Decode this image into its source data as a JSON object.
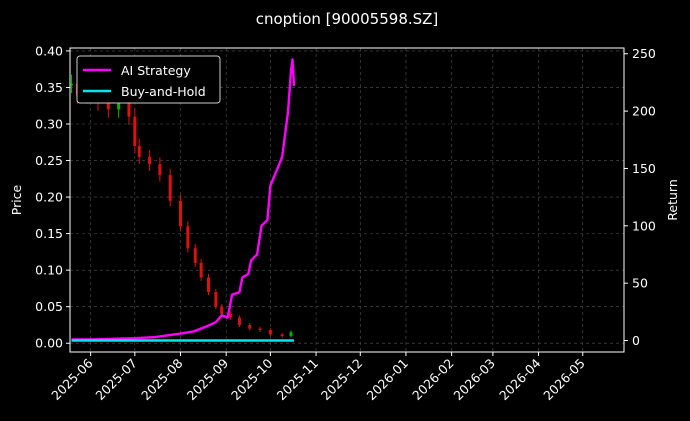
{
  "chart_data": {
    "type": "line",
    "title": "cnoption [90005598.SZ]",
    "ylabel_left": "Price",
    "ylabel_right": "Return",
    "ylim_left": [
      -0.012,
      0.404
    ],
    "ylim_right": [
      -10,
      255
    ],
    "yticks_left": [
      "0.00",
      "0.05",
      "0.10",
      "0.15",
      "0.20",
      "0.25",
      "0.30",
      "0.35",
      "0.40"
    ],
    "yticks_left_values": [
      0.0,
      0.05,
      0.1,
      0.15,
      0.2,
      0.25,
      0.3,
      0.35,
      0.4
    ],
    "yticks_right": [
      "0",
      "50",
      "100",
      "150",
      "200",
      "250"
    ],
    "yticks_right_values": [
      0,
      50,
      100,
      150,
      200,
      250
    ],
    "xlim": [
      "2025-05-18",
      "2026-05-29"
    ],
    "xticks": [
      "2025-06",
      "2025-07",
      "2025-08",
      "2025-09",
      "2025-10",
      "2025-11",
      "2025-12",
      "2026-01",
      "2026-02",
      "2026-03",
      "2026-04",
      "2026-05"
    ],
    "xtick_dates": [
      "2025-06-01",
      "2025-07-01",
      "2025-08-01",
      "2025-09-01",
      "2025-10-01",
      "2025-11-01",
      "2025-12-01",
      "2026-01-01",
      "2026-02-01",
      "2026-03-01",
      "2026-04-01",
      "2026-05-01"
    ],
    "grid": true,
    "legend_position": "top-left",
    "colors": {
      "background": "#000000",
      "ai_strategy": "#ff00ff",
      "buy_and_hold": "#00e5ee",
      "candle_up": "#00b300",
      "candle_down": "#e01010",
      "grid": "#555555",
      "text": "#ffffff"
    },
    "series": [
      {
        "name": "AI Strategy",
        "axis": "right",
        "points": [
          [
            "2025-05-19",
            1
          ],
          [
            "2025-06-02",
            1
          ],
          [
            "2025-06-16",
            1.5
          ],
          [
            "2025-07-01",
            2
          ],
          [
            "2025-07-15",
            3
          ],
          [
            "2025-08-01",
            6
          ],
          [
            "2025-08-10",
            8
          ],
          [
            "2025-08-18",
            12
          ],
          [
            "2025-08-25",
            16
          ],
          [
            "2025-08-29",
            22
          ],
          [
            "2025-09-02",
            20
          ],
          [
            "2025-09-05",
            40
          ],
          [
            "2025-09-10",
            42
          ],
          [
            "2025-09-12",
            55
          ],
          [
            "2025-09-16",
            58
          ],
          [
            "2025-09-18",
            70
          ],
          [
            "2025-09-22",
            75
          ],
          [
            "2025-09-25",
            100
          ],
          [
            "2025-09-29",
            105
          ],
          [
            "2025-10-01",
            135
          ],
          [
            "2025-10-09",
            160
          ],
          [
            "2025-10-13",
            200
          ],
          [
            "2025-10-15",
            235
          ],
          [
            "2025-10-16",
            245
          ],
          [
            "2025-10-17",
            222
          ]
        ]
      },
      {
        "name": "Buy-and-Hold",
        "axis": "right",
        "points": [
          [
            "2025-05-19",
            0
          ],
          [
            "2025-10-17",
            0
          ]
        ]
      }
    ],
    "candles": [
      {
        "date": "2025-05-19",
        "close": 0.355
      },
      {
        "date": "2025-05-23",
        "close": 0.34
      },
      {
        "date": "2025-05-30",
        "close": 0.345
      },
      {
        "date": "2025-06-06",
        "close": 0.33
      },
      {
        "date": "2025-06-13",
        "close": 0.32
      },
      {
        "date": "2025-06-20",
        "close": 0.335
      },
      {
        "date": "2025-06-27",
        "close": 0.31
      },
      {
        "date": "2025-07-01",
        "close": 0.27
      },
      {
        "date": "2025-07-04",
        "close": 0.255
      },
      {
        "date": "2025-07-11",
        "close": 0.245
      },
      {
        "date": "2025-07-18",
        "close": 0.23
      },
      {
        "date": "2025-07-25",
        "close": 0.195
      },
      {
        "date": "2025-08-01",
        "close": 0.16
      },
      {
        "date": "2025-08-06",
        "close": 0.13
      },
      {
        "date": "2025-08-11",
        "close": 0.11
      },
      {
        "date": "2025-08-15",
        "close": 0.09
      },
      {
        "date": "2025-08-20",
        "close": 0.07
      },
      {
        "date": "2025-08-25",
        "close": 0.05
      },
      {
        "date": "2025-08-29",
        "close": 0.04
      },
      {
        "date": "2025-09-04",
        "close": 0.035
      },
      {
        "date": "2025-09-10",
        "close": 0.025
      },
      {
        "date": "2025-09-17",
        "close": 0.02
      },
      {
        "date": "2025-09-24",
        "close": 0.018
      },
      {
        "date": "2025-10-01",
        "close": 0.012
      },
      {
        "date": "2025-10-09",
        "close": 0.01
      },
      {
        "date": "2025-10-15",
        "close": 0.015
      }
    ]
  }
}
